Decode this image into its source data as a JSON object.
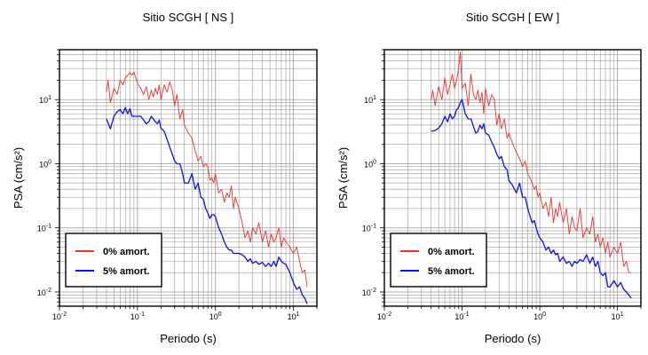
{
  "chart_data": [
    {
      "type": "line",
      "title": "Sitio SCGH [ NS ]",
      "xlabel": "Periodo (s)",
      "ylabel": "PSA (cm/s²)",
      "xscale": "log",
      "yscale": "log",
      "xlim": [
        0.01,
        20
      ],
      "ylim": [
        0.006,
        60
      ],
      "xticks": [
        {
          "value": 0.01,
          "base": "10",
          "exp": "-2"
        },
        {
          "value": 0.1,
          "base": "10",
          "exp": "-1"
        },
        {
          "value": 1,
          "base": "10",
          "exp": "0"
        },
        {
          "value": 10,
          "base": "10",
          "exp": "1"
        }
      ],
      "yticks": [
        {
          "value": 0.01,
          "base": "10",
          "exp": "-2"
        },
        {
          "value": 0.1,
          "base": "10",
          "exp": "-1"
        },
        {
          "value": 1,
          "base": "10",
          "exp": "0"
        },
        {
          "value": 10,
          "base": "10",
          "exp": "1"
        }
      ],
      "grid": true,
      "legend_position": "bottom-left",
      "series": [
        {
          "name": "0% amort.",
          "color": "#e8312f",
          "x": [
            0.04,
            0.042,
            0.045,
            0.05,
            0.055,
            0.06,
            0.065,
            0.07,
            0.075,
            0.08,
            0.085,
            0.09,
            0.1,
            0.11,
            0.12,
            0.13,
            0.14,
            0.15,
            0.16,
            0.17,
            0.18,
            0.19,
            0.2,
            0.22,
            0.24,
            0.26,
            0.28,
            0.3,
            0.32,
            0.35,
            0.38,
            0.4,
            0.45,
            0.5,
            0.55,
            0.6,
            0.65,
            0.7,
            0.75,
            0.8,
            0.85,
            0.9,
            0.95,
            1.0,
            1.1,
            1.2,
            1.3,
            1.4,
            1.5,
            1.6,
            1.7,
            1.8,
            2.0,
            2.2,
            2.4,
            2.6,
            2.8,
            3.0,
            3.3,
            3.6,
            4.0,
            4.4,
            4.8,
            5.2,
            5.6,
            6.0,
            6.5,
            7.0,
            7.5,
            8.0,
            9.0,
            10.0,
            11.0,
            12.0,
            13.0,
            14.0,
            15.0
          ],
          "y": [
            13,
            20,
            9,
            15,
            12,
            20,
            17,
            22,
            24,
            26,
            24,
            27,
            18,
            15,
            12,
            16,
            10,
            14,
            11,
            15,
            12,
            17,
            10,
            17,
            13,
            19,
            14,
            8,
            12,
            5,
            7,
            4,
            3,
            2.5,
            1.6,
            1.1,
            1.3,
            0.9,
            1.0,
            0.9,
            0.55,
            0.6,
            0.5,
            0.7,
            0.35,
            0.4,
            0.25,
            0.35,
            0.3,
            0.45,
            0.2,
            0.3,
            0.2,
            0.12,
            0.07,
            0.09,
            0.06,
            0.1,
            0.08,
            0.12,
            0.06,
            0.09,
            0.05,
            0.08,
            0.06,
            0.07,
            0.1,
            0.05,
            0.07,
            0.06,
            0.05,
            0.04,
            0.05,
            0.03,
            0.02,
            0.022,
            0.012
          ]
        },
        {
          "name": "5% amort.",
          "color": "#1010e0",
          "x": [
            0.04,
            0.045,
            0.05,
            0.055,
            0.06,
            0.065,
            0.07,
            0.075,
            0.08,
            0.085,
            0.09,
            0.1,
            0.11,
            0.12,
            0.13,
            0.14,
            0.15,
            0.16,
            0.17,
            0.18,
            0.19,
            0.2,
            0.22,
            0.24,
            0.26,
            0.28,
            0.3,
            0.32,
            0.35,
            0.38,
            0.4,
            0.45,
            0.5,
            0.55,
            0.6,
            0.65,
            0.7,
            0.75,
            0.8,
            0.85,
            0.9,
            0.95,
            1.0,
            1.1,
            1.2,
            1.3,
            1.4,
            1.5,
            1.6,
            1.7,
            1.8,
            2.0,
            2.2,
            2.4,
            2.6,
            2.8,
            3.0,
            3.3,
            3.6,
            4.0,
            4.4,
            4.8,
            5.2,
            5.6,
            6.0,
            6.5,
            7.0,
            7.5,
            8.0,
            9.0,
            10.0,
            11.0,
            12.0,
            13.0,
            14.0,
            15.0
          ],
          "y": [
            5.0,
            3.5,
            5.5,
            6.5,
            7.0,
            6.0,
            7.5,
            6.0,
            7.2,
            5.5,
            5.5,
            5.5,
            5.5,
            4.8,
            4.2,
            4.5,
            5.5,
            5.0,
            4.5,
            4.2,
            4.8,
            3.6,
            3.2,
            2.4,
            1.8,
            1.4,
            1.1,
            1.0,
            1.0,
            0.7,
            0.5,
            0.5,
            0.7,
            0.4,
            0.5,
            0.3,
            0.28,
            0.2,
            0.17,
            0.14,
            0.16,
            0.16,
            0.15,
            0.1,
            0.08,
            0.06,
            0.05,
            0.045,
            0.045,
            0.04,
            0.04,
            0.04,
            0.038,
            0.035,
            0.03,
            0.033,
            0.028,
            0.03,
            0.027,
            0.029,
            0.025,
            0.028,
            0.025,
            0.03,
            0.025,
            0.035,
            0.03,
            0.028,
            0.027,
            0.02,
            0.014,
            0.011,
            0.012,
            0.009,
            0.008,
            0.0065
          ]
        }
      ]
    },
    {
      "type": "line",
      "title": "Sitio SCGH [ EW ]",
      "xlabel": "Periodo (s)",
      "ylabel": "PSA (cm/s²)",
      "xscale": "log",
      "yscale": "log",
      "xlim": [
        0.01,
        20
      ],
      "ylim": [
        0.006,
        60
      ],
      "xticks": [
        {
          "value": 0.01,
          "base": "10",
          "exp": "-2"
        },
        {
          "value": 0.1,
          "base": "10",
          "exp": "-1"
        },
        {
          "value": 1,
          "base": "10",
          "exp": "0"
        },
        {
          "value": 10,
          "base": "10",
          "exp": "1"
        }
      ],
      "yticks": [
        {
          "value": 0.01,
          "base": "10",
          "exp": "-2"
        },
        {
          "value": 0.1,
          "base": "10",
          "exp": "-1"
        },
        {
          "value": 1,
          "base": "10",
          "exp": "0"
        },
        {
          "value": 10,
          "base": "10",
          "exp": "1"
        }
      ],
      "grid": true,
      "legend_position": "bottom-left",
      "series": [
        {
          "name": "0% amort.",
          "color": "#e8312f",
          "x": [
            0.04,
            0.042,
            0.045,
            0.05,
            0.055,
            0.06,
            0.065,
            0.07,
            0.075,
            0.08,
            0.085,
            0.09,
            0.095,
            0.1,
            0.11,
            0.12,
            0.13,
            0.14,
            0.15,
            0.16,
            0.17,
            0.18,
            0.19,
            0.2,
            0.22,
            0.24,
            0.26,
            0.28,
            0.3,
            0.32,
            0.35,
            0.38,
            0.4,
            0.45,
            0.5,
            0.55,
            0.6,
            0.65,
            0.7,
            0.75,
            0.8,
            0.85,
            0.9,
            0.95,
            1.0,
            1.1,
            1.2,
            1.3,
            1.4,
            1.5,
            1.6,
            1.7,
            1.8,
            2.0,
            2.2,
            2.4,
            2.6,
            2.8,
            3.0,
            3.3,
            3.6,
            4.0,
            4.4,
            4.8,
            5.2,
            5.6,
            6.0,
            6.5,
            7.0,
            7.5,
            8.0,
            9.0,
            10.0,
            11.0,
            12.0,
            13.0,
            14.0,
            15.0
          ],
          "y": [
            10,
            14,
            8,
            16,
            10,
            22,
            12,
            17,
            25,
            15,
            20,
            30,
            55,
            15,
            18,
            8,
            25,
            12,
            10,
            14,
            9,
            13,
            6,
            15,
            8,
            12,
            10,
            4,
            6,
            3.5,
            5,
            2.5,
            3,
            2,
            1.5,
            1.2,
            0.9,
            1.1,
            0.7,
            0.6,
            0.5,
            0.4,
            0.45,
            0.3,
            0.35,
            0.2,
            0.25,
            0.15,
            0.3,
            0.12,
            0.2,
            0.15,
            0.25,
            0.12,
            0.2,
            0.08,
            0.15,
            0.1,
            0.09,
            0.2,
            0.07,
            0.1,
            0.08,
            0.15,
            0.06,
            0.08,
            0.05,
            0.07,
            0.04,
            0.06,
            0.035,
            0.05,
            0.04,
            0.06,
            0.025,
            0.03,
            0.02,
            0.02
          ]
        },
        {
          "name": "5% amort.",
          "color": "#1010e0",
          "x": [
            0.04,
            0.045,
            0.05,
            0.055,
            0.06,
            0.065,
            0.07,
            0.075,
            0.08,
            0.085,
            0.09,
            0.095,
            0.1,
            0.11,
            0.12,
            0.13,
            0.14,
            0.15,
            0.16,
            0.17,
            0.18,
            0.19,
            0.2,
            0.22,
            0.24,
            0.26,
            0.28,
            0.3,
            0.32,
            0.35,
            0.38,
            0.4,
            0.45,
            0.5,
            0.55,
            0.6,
            0.65,
            0.7,
            0.75,
            0.8,
            0.85,
            0.9,
            0.95,
            1.0,
            1.1,
            1.2,
            1.3,
            1.4,
            1.5,
            1.6,
            1.7,
            1.8,
            2.0,
            2.2,
            2.4,
            2.6,
            2.8,
            3.0,
            3.3,
            3.6,
            4.0,
            4.4,
            4.8,
            5.2,
            5.6,
            6.0,
            6.5,
            7.0,
            7.5,
            8.0,
            9.0,
            10.0,
            11.0,
            12.0,
            13.0,
            14.0,
            15.0
          ],
          "y": [
            3.2,
            3.3,
            3.6,
            4.2,
            5.5,
            4.5,
            6.0,
            5.0,
            5.5,
            7.0,
            7.5,
            9.0,
            10.0,
            6.0,
            5.0,
            5.0,
            3.8,
            3.0,
            3.2,
            4.0,
            3.5,
            4.2,
            3.0,
            2.8,
            2.2,
            1.8,
            1.4,
            1.2,
            1.3,
            0.9,
            0.8,
            0.55,
            0.45,
            0.35,
            0.5,
            0.3,
            0.3,
            0.2,
            0.15,
            0.12,
            0.13,
            0.1,
            0.08,
            0.07,
            0.06,
            0.045,
            0.05,
            0.04,
            0.045,
            0.038,
            0.04,
            0.03,
            0.035,
            0.028,
            0.03,
            0.025,
            0.03,
            0.028,
            0.032,
            0.03,
            0.038,
            0.028,
            0.035,
            0.025,
            0.03,
            0.02,
            0.018,
            0.02,
            0.012,
            0.012,
            0.015,
            0.012,
            0.014,
            0.011,
            0.01,
            0.009,
            0.008
          ]
        }
      ]
    }
  ]
}
